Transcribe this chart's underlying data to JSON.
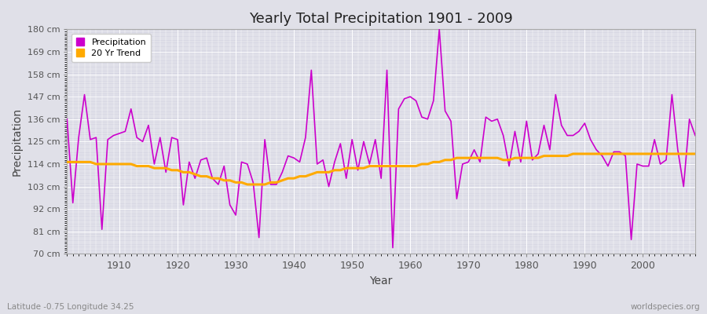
{
  "title": "Yearly Total Precipitation 1901 - 2009",
  "xlabel": "Year",
  "ylabel": "Precipitation",
  "subtitle_left": "Latitude -0.75 Longitude 34.25",
  "subtitle_right": "worldspecies.org",
  "bg_color": "#e0e0e8",
  "plot_bg_color": "#d8d8e4",
  "line_color": "#cc00cc",
  "trend_color": "#ffaa00",
  "ylim": [
    70,
    180
  ],
  "yticks": [
    70,
    81,
    92,
    103,
    114,
    125,
    136,
    147,
    158,
    169,
    180
  ],
  "ytick_labels": [
    "70 cm",
    "81 cm",
    "92 cm",
    "103 cm",
    "114 cm",
    "125 cm",
    "136 cm",
    "147 cm",
    "158 cm",
    "169 cm",
    "180 cm"
  ],
  "xlim": [
    1901,
    2009
  ],
  "xticks": [
    1910,
    1920,
    1930,
    1940,
    1950,
    1960,
    1970,
    1980,
    1990,
    2000
  ],
  "years": [
    1901,
    1902,
    1903,
    1904,
    1905,
    1906,
    1907,
    1908,
    1909,
    1910,
    1911,
    1912,
    1913,
    1914,
    1915,
    1916,
    1917,
    1918,
    1919,
    1920,
    1921,
    1922,
    1923,
    1924,
    1925,
    1926,
    1927,
    1928,
    1929,
    1930,
    1931,
    1932,
    1933,
    1934,
    1935,
    1936,
    1937,
    1938,
    1939,
    1940,
    1941,
    1942,
    1943,
    1944,
    1945,
    1946,
    1947,
    1948,
    1949,
    1950,
    1951,
    1952,
    1953,
    1954,
    1955,
    1956,
    1957,
    1958,
    1959,
    1960,
    1961,
    1962,
    1963,
    1964,
    1965,
    1966,
    1967,
    1968,
    1969,
    1970,
    1971,
    1972,
    1973,
    1974,
    1975,
    1976,
    1977,
    1978,
    1979,
    1980,
    1981,
    1982,
    1983,
    1984,
    1985,
    1986,
    1987,
    1988,
    1989,
    1990,
    1991,
    1992,
    1993,
    1994,
    1995,
    1996,
    1997,
    1998,
    1999,
    2000,
    2001,
    2002,
    2003,
    2004,
    2005,
    2006,
    2007,
    2008,
    2009
  ],
  "precip": [
    136,
    95,
    127,
    148,
    126,
    127,
    82,
    126,
    128,
    129,
    130,
    141,
    127,
    125,
    133,
    114,
    127,
    110,
    127,
    126,
    94,
    115,
    107,
    116,
    117,
    107,
    104,
    113,
    94,
    89,
    115,
    114,
    105,
    78,
    126,
    104,
    104,
    110,
    118,
    117,
    115,
    127,
    160,
    114,
    116,
    103,
    115,
    124,
    107,
    126,
    111,
    125,
    114,
    126,
    107,
    160,
    73,
    141,
    146,
    147,
    145,
    137,
    136,
    145,
    180,
    140,
    135,
    97,
    114,
    115,
    121,
    115,
    137,
    135,
    136,
    128,
    113,
    130,
    115,
    135,
    116,
    119,
    133,
    121,
    148,
    133,
    128,
    128,
    130,
    134,
    126,
    121,
    118,
    113,
    120,
    120,
    118,
    77,
    114,
    113,
    113,
    126,
    114,
    116,
    148,
    121,
    103,
    136,
    128
  ],
  "trend": [
    115,
    115,
    115,
    115,
    115,
    114,
    114,
    114,
    114,
    114,
    114,
    114,
    113,
    113,
    113,
    112,
    112,
    112,
    111,
    111,
    110,
    110,
    109,
    108,
    108,
    107,
    107,
    106,
    106,
    105,
    105,
    104,
    104,
    104,
    104,
    105,
    105,
    106,
    107,
    107,
    108,
    108,
    109,
    110,
    110,
    110,
    111,
    111,
    112,
    112,
    112,
    112,
    113,
    113,
    113,
    113,
    113,
    113,
    113,
    113,
    113,
    114,
    114,
    115,
    115,
    116,
    116,
    117,
    117,
    117,
    117,
    117,
    117,
    117,
    117,
    116,
    116,
    117,
    117,
    117,
    117,
    117,
    118,
    118,
    118,
    118,
    118,
    119,
    119,
    119,
    119,
    119,
    119,
    119,
    119,
    119,
    119,
    119,
    119,
    119,
    119,
    119,
    119,
    119,
    119,
    119,
    119,
    119,
    119
  ]
}
